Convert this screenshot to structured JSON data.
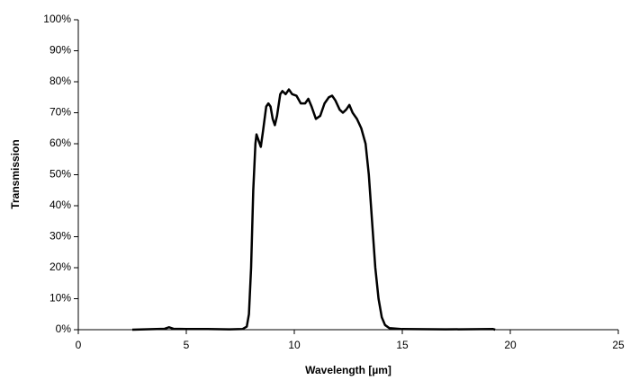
{
  "chart_data": {
    "type": "line",
    "x_label": "Wavelength [µm]",
    "y_label": "Transmission",
    "xlim": [
      0,
      25
    ],
    "xticks": [
      0,
      5,
      10,
      15,
      20,
      25
    ],
    "ylim": [
      0,
      100
    ],
    "yticks": [
      {
        "value": 0,
        "label": "0%"
      },
      {
        "value": 10,
        "label": "10%"
      },
      {
        "value": 20,
        "label": "20%"
      },
      {
        "value": 30,
        "label": "30%"
      },
      {
        "value": 40,
        "label": "40%"
      },
      {
        "value": 50,
        "label": "50%"
      },
      {
        "value": 60,
        "label": "60%"
      },
      {
        "value": 70,
        "label": "70%"
      },
      {
        "value": 80,
        "label": "80%"
      },
      {
        "value": 90,
        "label": "90%"
      },
      {
        "value": 100,
        "label": "100%"
      }
    ],
    "grid": false,
    "series": [
      {
        "color": "#000000",
        "x": [
          2.5,
          4.0,
          4.2,
          4.4,
          5,
          6,
          7,
          7.6,
          7.8,
          7.9,
          8.0,
          8.1,
          8.2,
          8.25,
          8.35,
          8.45,
          8.55,
          8.7,
          8.8,
          8.9,
          9.0,
          9.1,
          9.2,
          9.35,
          9.45,
          9.6,
          9.75,
          9.9,
          10.1,
          10.3,
          10.5,
          10.65,
          10.8,
          11.0,
          11.2,
          11.4,
          11.6,
          11.75,
          11.9,
          12.1,
          12.25,
          12.4,
          12.55,
          12.7,
          12.9,
          13.1,
          13.3,
          13.45,
          13.6,
          13.75,
          13.9,
          14.05,
          14.2,
          14.4,
          15,
          17,
          19.2,
          19.3
        ],
        "values": [
          0,
          0.3,
          0.8,
          0.3,
          0.2,
          0.2,
          0.1,
          0.2,
          1,
          5,
          20,
          45,
          60,
          63,
          61,
          59,
          64,
          72,
          73,
          72,
          68,
          66,
          69,
          76,
          77,
          76,
          77.5,
          76,
          75.5,
          73,
          73,
          74.5,
          72,
          68,
          69,
          73,
          75,
          75.5,
          74,
          71,
          70,
          71,
          72.5,
          70,
          68,
          65,
          60,
          50,
          35,
          20,
          10,
          4,
          1.5,
          0.5,
          0.2,
          0.1,
          0.2,
          0
        ]
      }
    ]
  }
}
